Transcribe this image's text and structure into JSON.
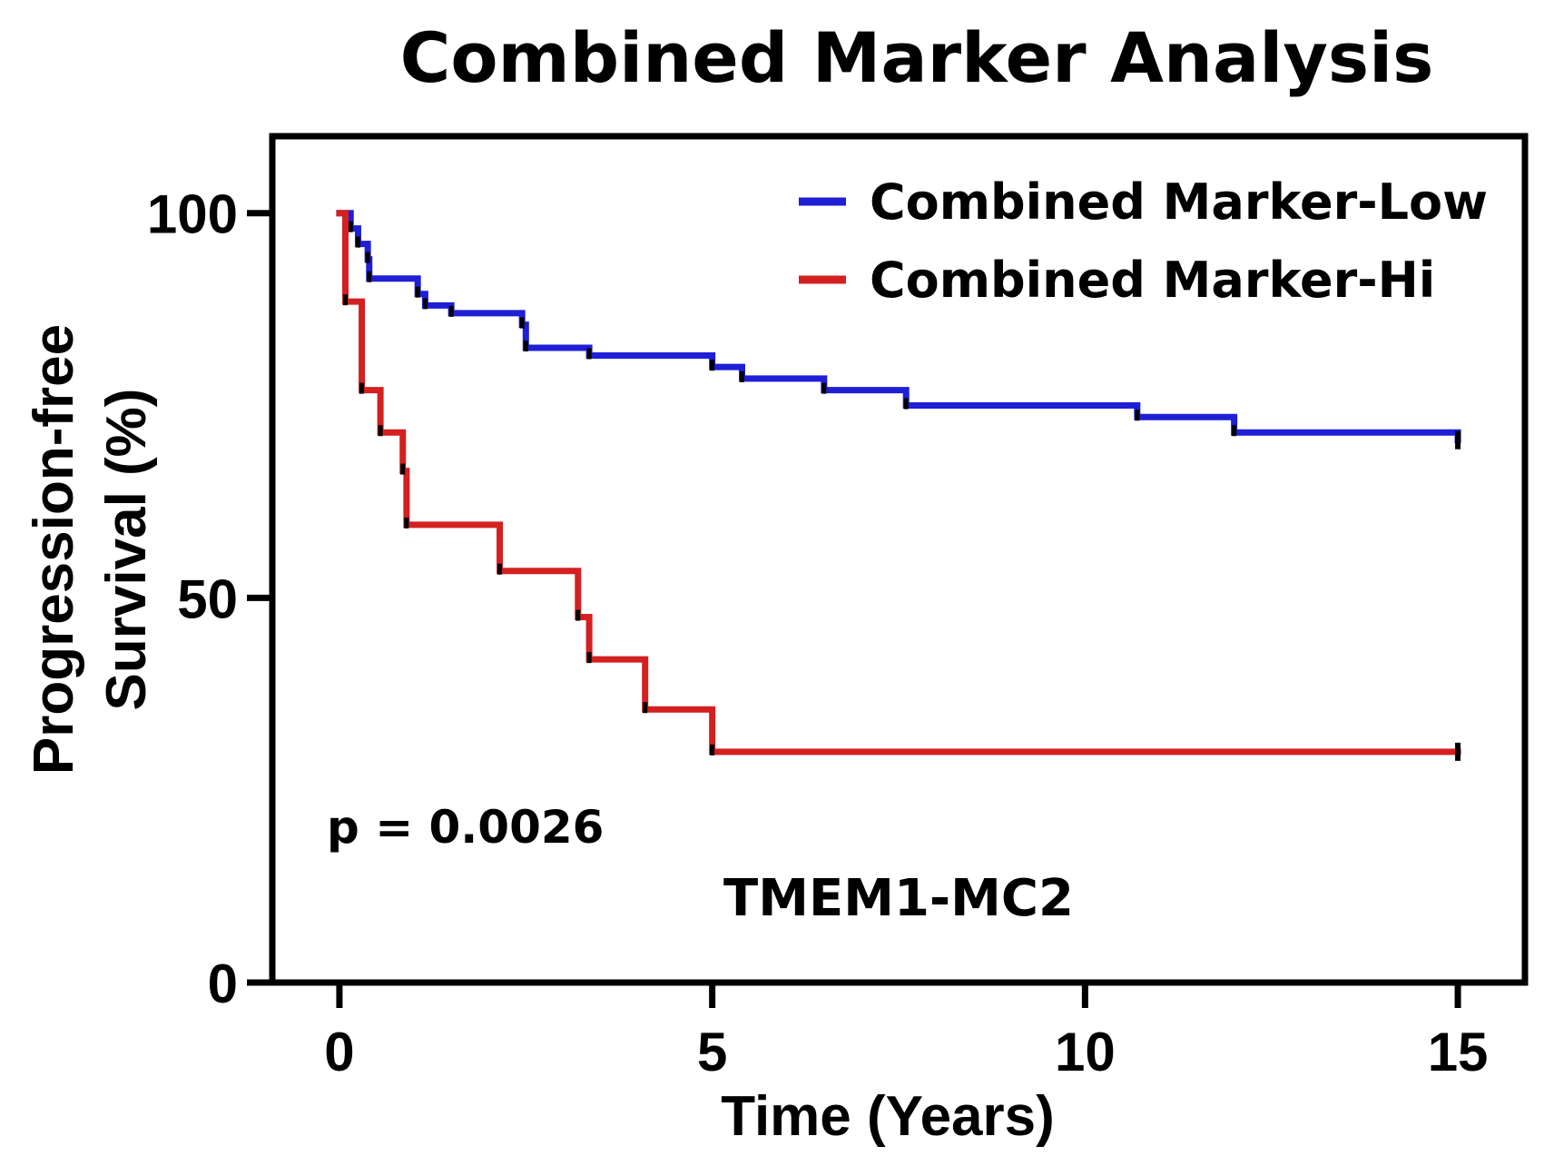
{
  "chart_data": {
    "type": "line",
    "subtype": "kaplan-meier-step",
    "title": "Combined Marker Analysis",
    "xlabel": "Time (Years)",
    "ylabel_line1": "Progression-free",
    "ylabel_line2": "Survival (%)",
    "xlim": [
      -0.9,
      15.9
    ],
    "ylim": [
      0,
      110
    ],
    "xticks": [
      0,
      5,
      10,
      15
    ],
    "xtick_labels": [
      "0",
      "5",
      "10",
      "15"
    ],
    "yticks": [
      0,
      50,
      100
    ],
    "ytick_labels": [
      "0",
      "50",
      "100"
    ],
    "legend_position": "top-right",
    "annotations": {
      "pvalue": "p = 0.0026",
      "label": "TMEM1-MC2"
    },
    "series": [
      {
        "name": "Combined Marker-Low",
        "color": "#1f1fd6",
        "points": [
          [
            0,
            100
          ],
          [
            0.15,
            98
          ],
          [
            0.25,
            96
          ],
          [
            0.38,
            94
          ],
          [
            0.4,
            91.5
          ],
          [
            1.05,
            89.5
          ],
          [
            1.15,
            88
          ],
          [
            1.5,
            87
          ],
          [
            2.45,
            85.5
          ],
          [
            2.5,
            82.5
          ],
          [
            3.35,
            81.5
          ],
          [
            5.0,
            80
          ],
          [
            5.4,
            78.5
          ],
          [
            6.5,
            77
          ],
          [
            7.6,
            75
          ],
          [
            10.7,
            73.5
          ],
          [
            12.0,
            71.5
          ],
          [
            15.0,
            70.5
          ]
        ],
        "censor_x": [
          15.0
        ]
      },
      {
        "name": "Combined Marker-Hi",
        "color": "#d42020",
        "points": [
          [
            0,
            100
          ],
          [
            0.08,
            88.5
          ],
          [
            0.3,
            77
          ],
          [
            0.55,
            71.5
          ],
          [
            0.85,
            66.5
          ],
          [
            0.9,
            59.5
          ],
          [
            2.15,
            53.5
          ],
          [
            3.2,
            47.5
          ],
          [
            3.35,
            42
          ],
          [
            4.1,
            35.5
          ],
          [
            5.0,
            30
          ],
          [
            15.0,
            30
          ]
        ],
        "censor_x": [
          15.0
        ]
      }
    ]
  }
}
